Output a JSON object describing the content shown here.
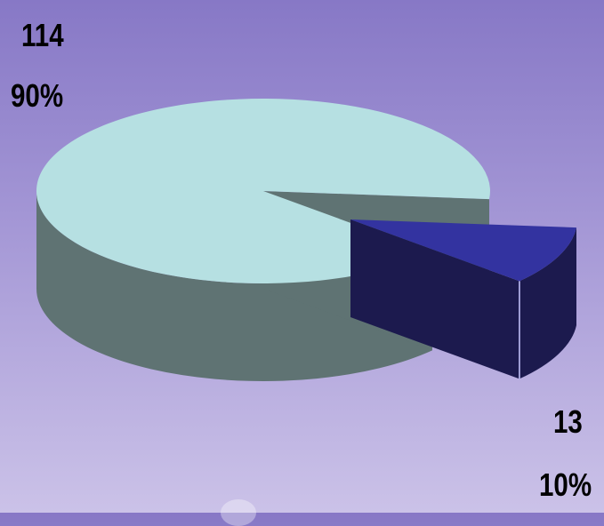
{
  "chart_data": {
    "type": "pie",
    "three_d": true,
    "exploded_slice": 1,
    "slices": [
      {
        "value": 114,
        "percent": "90%",
        "value_label": "114",
        "color_top": "#b6e0e2",
        "color_side": "#5f7373"
      },
      {
        "value": 13,
        "percent": "10%",
        "value_label": "13",
        "color_top": "#3333a0",
        "color_side": "#1c1a4e"
      }
    ]
  },
  "labels": {
    "big_value": "114",
    "big_percent": "90%",
    "small_value": "13",
    "small_percent": "10%"
  }
}
